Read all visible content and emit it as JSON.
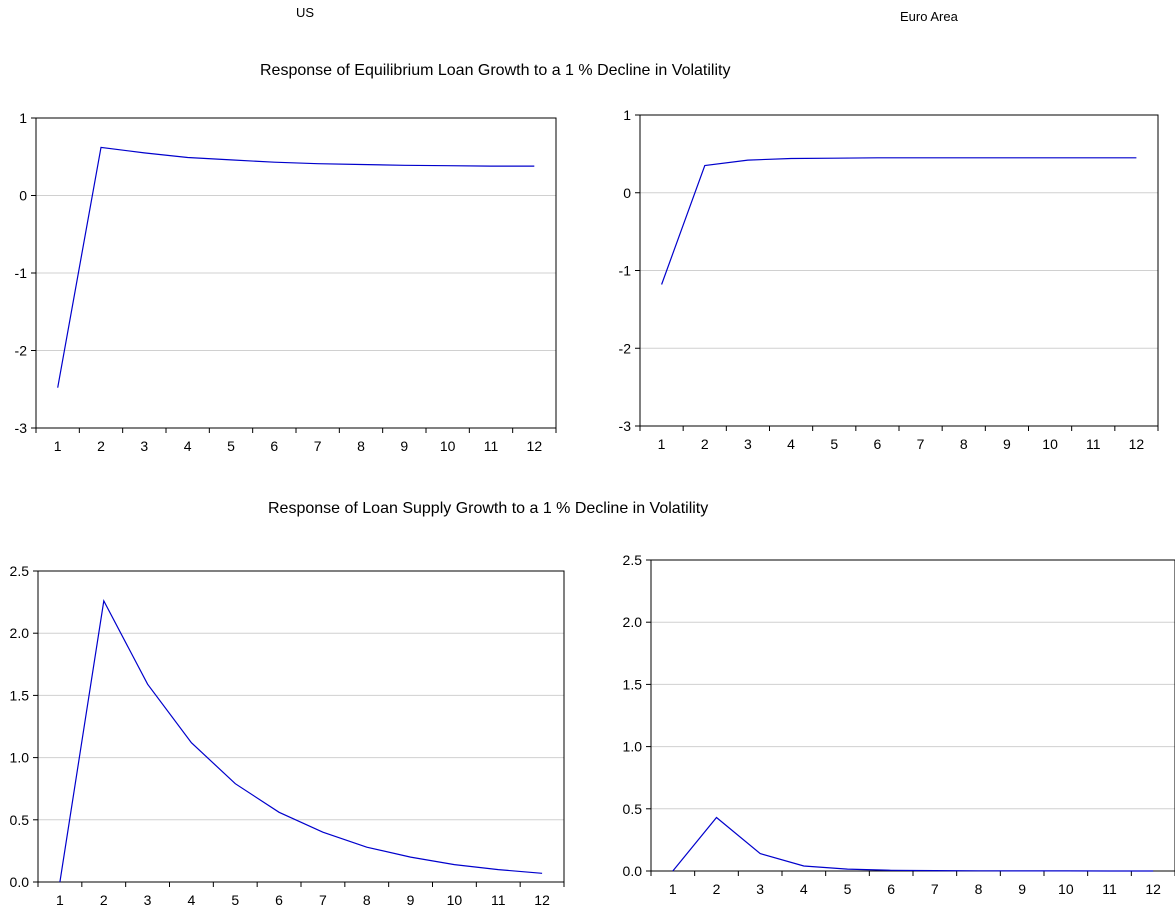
{
  "headers": {
    "left": "US",
    "right": "Euro Area"
  },
  "sections": {
    "top_title": "Response of Equilibrium Loan Growth to a 1 %  Decline in Volatility",
    "bottom_title": "Response of Loan Supply Growth to a 1 %  Decline in Volatility"
  },
  "colors": {
    "line": "#0000cc",
    "grid": "#d0d0d0",
    "frame": "#000000"
  },
  "chart_data": [
    {
      "type": "line",
      "x": [
        1,
        2,
        3,
        4,
        5,
        6,
        7,
        8,
        9,
        10,
        11,
        12
      ],
      "series": [
        {
          "values": [
            -2.48,
            0.62,
            0.55,
            0.49,
            0.46,
            0.43,
            0.41,
            0.4,
            0.39,
            0.385,
            0.38,
            0.38
          ]
        }
      ],
      "ylim": [
        -3,
        1
      ],
      "yticks": [
        "1",
        "0",
        "-1",
        "-2",
        "-3"
      ],
      "xticks": [
        "1",
        "2",
        "3",
        "4",
        "5",
        "6",
        "7",
        "8",
        "9",
        "10",
        "11",
        "12"
      ],
      "grid": true
    },
    {
      "type": "line",
      "x": [
        1,
        2,
        3,
        4,
        5,
        6,
        7,
        8,
        9,
        10,
        11,
        12
      ],
      "series": [
        {
          "values": [
            -1.18,
            0.35,
            0.42,
            0.44,
            0.445,
            0.45,
            0.45,
            0.45,
            0.45,
            0.45,
            0.45,
            0.45
          ]
        }
      ],
      "ylim": [
        -3,
        1
      ],
      "yticks": [
        "1",
        "0",
        "-1",
        "-2",
        "-3"
      ],
      "xticks": [
        "1",
        "2",
        "3",
        "4",
        "5",
        "6",
        "7",
        "8",
        "9",
        "10",
        "11",
        "12"
      ],
      "grid": true
    },
    {
      "type": "line",
      "x": [
        1,
        2,
        3,
        4,
        5,
        6,
        7,
        8,
        9,
        10,
        11,
        12
      ],
      "series": [
        {
          "values": [
            0.0,
            2.26,
            1.59,
            1.12,
            0.79,
            0.56,
            0.4,
            0.28,
            0.2,
            0.14,
            0.1,
            0.07
          ]
        }
      ],
      "ylim": [
        0,
        2.5
      ],
      "yticks": [
        "2.5",
        "2.0",
        "1.5",
        "1.0",
        "0.5",
        "0.0"
      ],
      "xticks": [
        "1",
        "2",
        "3",
        "4",
        "5",
        "6",
        "7",
        "8",
        "9",
        "10",
        "11",
        "12"
      ],
      "grid": true
    },
    {
      "type": "line",
      "x": [
        1,
        2,
        3,
        4,
        5,
        6,
        7,
        8,
        9,
        10,
        11,
        12
      ],
      "series": [
        {
          "values": [
            0.0,
            0.43,
            0.14,
            0.04,
            0.015,
            0.006,
            0.003,
            0.002,
            0.001,
            0.001,
            0.0,
            0.0
          ]
        }
      ],
      "ylim": [
        0,
        2.5
      ],
      "yticks": [
        "2.5",
        "2.0",
        "1.5",
        "1.0",
        "0.5",
        "0.0"
      ],
      "xticks": [
        "1",
        "2",
        "3",
        "4",
        "5",
        "6",
        "7",
        "8",
        "9",
        "10",
        "11",
        "12"
      ],
      "grid": true
    }
  ]
}
